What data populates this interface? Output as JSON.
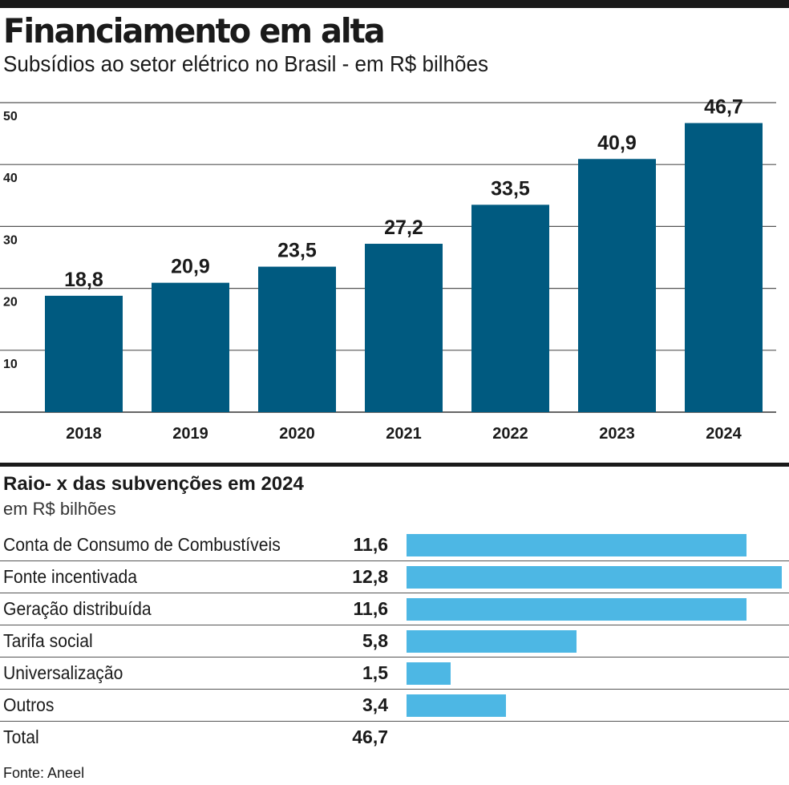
{
  "header": {
    "title": "Financiamento em alta",
    "subtitle": "Subsídios ao setor elétrico no Brasil - em R$ bilhões"
  },
  "colors": {
    "main_bar": "#005a80",
    "breakdown_bar": "#4db7e4",
    "ink": "#1a1a1a"
  },
  "chart_data": [
    {
      "type": "bar",
      "title": "Financiamento em alta",
      "subtitle": "Subsídios ao setor elétrico no Brasil - em R$ bilhões",
      "categories": [
        "2018",
        "2019",
        "2020",
        "2021",
        "2022",
        "2023",
        "2024"
      ],
      "values": [
        18.8,
        20.9,
        23.5,
        27.2,
        33.5,
        40.9,
        46.7
      ],
      "value_labels": [
        "18,8",
        "20,9",
        "23,5",
        "27,2",
        "33,5",
        "40,9",
        "46,7"
      ],
      "yticks": [
        10,
        20,
        30,
        40,
        50
      ],
      "ylim": [
        0,
        50
      ],
      "grid": true
    },
    {
      "type": "bar",
      "orientation": "horizontal",
      "title": "Raio- x das subvenções em 2024",
      "subtitle": "em R$ bilhões",
      "categories": [
        "Conta de Consumo de Combustíveis",
        "Fonte incentivada",
        "Geração distribuída",
        "Tarifa social",
        "Universalização",
        "Outros"
      ],
      "values": [
        11.6,
        12.8,
        11.6,
        5.8,
        1.5,
        3.4
      ],
      "value_labels": [
        "11,6",
        "12,8",
        "11,6",
        "5,8",
        "1,5",
        "3,4"
      ],
      "xlim": [
        0,
        12.8
      ],
      "total": {
        "label": "Total",
        "value": 46.7,
        "value_label": "46,7"
      }
    }
  ],
  "breakdown": {
    "title": "Raio- x das subvenções em 2024",
    "subtitle": "em R$ bilhões",
    "rows": [
      {
        "label": "Conta de Consumo de Combustíveis",
        "value_text": "11,6",
        "value": 11.6
      },
      {
        "label": "Fonte incentivada",
        "value_text": "12,8",
        "value": 12.8
      },
      {
        "label": "Geração distribuída",
        "value_text": "11,6",
        "value": 11.6
      },
      {
        "label": "Tarifa social",
        "value_text": "5,8",
        "value": 5.8
      },
      {
        "label": "Universalização",
        "value_text": "1,5",
        "value": 1.5
      },
      {
        "label": "Outros",
        "value_text": "3,4",
        "value": 3.4
      }
    ],
    "total": {
      "label": "Total",
      "value_text": "46,7"
    }
  },
  "footer": {
    "source": "Fonte: Aneel"
  }
}
